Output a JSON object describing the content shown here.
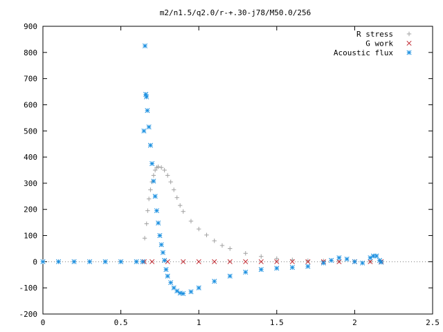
{
  "chart_data": {
    "type": "scatter",
    "title": "m2/n1.5/q2.0/r-+.30-j78/M50.0/256",
    "xlabel": "",
    "ylabel": "",
    "xlim": [
      0,
      2.5
    ],
    "ylim": [
      -200,
      900
    ],
    "x_ticks": [
      "0",
      "0.5",
      "1",
      "1.5",
      "2",
      "2.5"
    ],
    "y_ticks": [
      "-200",
      "-100",
      "0",
      "100",
      "200",
      "300",
      "400",
      "500",
      "600",
      "700",
      "800",
      "900"
    ],
    "legend_position": "top-right",
    "grid": false,
    "series": [
      {
        "name": "R stress",
        "marker": "plus",
        "color": "#a0a0a0",
        "points": [
          [
            0.0,
            0
          ],
          [
            0.1,
            0
          ],
          [
            0.2,
            0
          ],
          [
            0.3,
            0
          ],
          [
            0.4,
            0
          ],
          [
            0.5,
            0
          ],
          [
            0.6,
            0
          ],
          [
            0.65,
            0
          ],
          [
            0.653,
            90
          ],
          [
            0.665,
            145
          ],
          [
            0.672,
            195
          ],
          [
            0.68,
            240
          ],
          [
            0.69,
            275
          ],
          [
            0.7,
            305
          ],
          [
            0.71,
            330
          ],
          [
            0.72,
            350
          ],
          [
            0.73,
            360
          ],
          [
            0.74,
            363
          ],
          [
            0.76,
            360
          ],
          [
            0.78,
            350
          ],
          [
            0.8,
            330
          ],
          [
            0.82,
            305
          ],
          [
            0.84,
            275
          ],
          [
            0.86,
            245
          ],
          [
            0.88,
            215
          ],
          [
            0.9,
            192
          ],
          [
            0.95,
            155
          ],
          [
            1.0,
            125
          ],
          [
            1.05,
            102
          ],
          [
            1.1,
            80
          ],
          [
            1.15,
            62
          ],
          [
            1.2,
            50
          ],
          [
            1.3,
            32
          ],
          [
            1.4,
            20
          ],
          [
            1.5,
            12
          ],
          [
            1.6,
            7
          ],
          [
            1.7,
            4
          ],
          [
            1.8,
            3
          ],
          [
            1.9,
            2
          ],
          [
            2.0,
            1
          ],
          [
            2.1,
            1
          ],
          [
            2.17,
            0
          ]
        ]
      },
      {
        "name": "G work",
        "marker": "cross",
        "color": "#c0262e",
        "points": [
          [
            0.65,
            0
          ],
          [
            0.7,
            0
          ],
          [
            0.8,
            0
          ],
          [
            0.9,
            0
          ],
          [
            1.0,
            0
          ],
          [
            1.1,
            0
          ],
          [
            1.2,
            0
          ],
          [
            1.3,
            0
          ],
          [
            1.4,
            0
          ],
          [
            1.5,
            0
          ],
          [
            1.6,
            0
          ],
          [
            1.7,
            0
          ],
          [
            1.8,
            0
          ],
          [
            1.9,
            0
          ],
          [
            2.0,
            0
          ],
          [
            2.1,
            0
          ],
          [
            2.17,
            0
          ]
        ]
      },
      {
        "name": "Acoustic flux",
        "marker": "star",
        "color": "#1a8fe0",
        "points": [
          [
            0.0,
            0
          ],
          [
            0.1,
            0
          ],
          [
            0.2,
            0
          ],
          [
            0.3,
            0
          ],
          [
            0.4,
            0
          ],
          [
            0.5,
            0
          ],
          [
            0.6,
            0
          ],
          [
            0.64,
            0
          ],
          [
            0.648,
            500
          ],
          [
            0.655,
            825
          ],
          [
            0.66,
            640
          ],
          [
            0.664,
            630
          ],
          [
            0.67,
            578
          ],
          [
            0.68,
            515
          ],
          [
            0.69,
            445
          ],
          [
            0.7,
            375
          ],
          [
            0.71,
            308
          ],
          [
            0.72,
            250
          ],
          [
            0.73,
            195
          ],
          [
            0.74,
            148
          ],
          [
            0.75,
            100
          ],
          [
            0.76,
            65
          ],
          [
            0.77,
            35
          ],
          [
            0.78,
            5
          ],
          [
            0.79,
            -30
          ],
          [
            0.8,
            -55
          ],
          [
            0.82,
            -80
          ],
          [
            0.84,
            -100
          ],
          [
            0.86,
            -112
          ],
          [
            0.88,
            -120
          ],
          [
            0.9,
            -122
          ],
          [
            0.95,
            -115
          ],
          [
            1.0,
            -100
          ],
          [
            1.1,
            -75
          ],
          [
            1.2,
            -55
          ],
          [
            1.3,
            -40
          ],
          [
            1.4,
            -30
          ],
          [
            1.5,
            -25
          ],
          [
            1.6,
            -22
          ],
          [
            1.7,
            -18
          ],
          [
            1.8,
            -5
          ],
          [
            1.85,
            5
          ],
          [
            1.9,
            15
          ],
          [
            1.95,
            10
          ],
          [
            2.0,
            0
          ],
          [
            2.05,
            -5
          ],
          [
            2.1,
            15
          ],
          [
            2.12,
            22
          ],
          [
            2.14,
            22
          ],
          [
            2.16,
            5
          ],
          [
            2.17,
            -2
          ]
        ]
      }
    ]
  }
}
